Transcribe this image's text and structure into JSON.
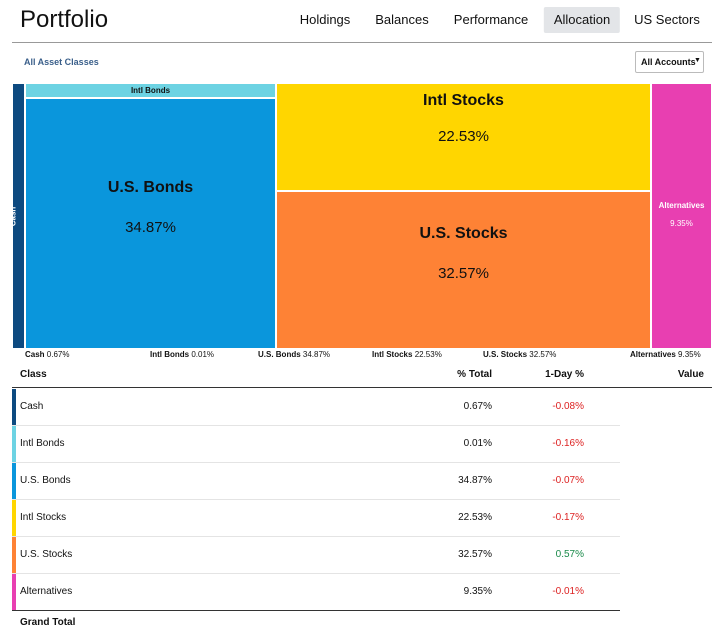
{
  "header": {
    "title": "Portfolio",
    "tabs": [
      "Holdings",
      "Balances",
      "Performance",
      "Allocation",
      "US Sectors"
    ],
    "active_tab": 3
  },
  "filters": {
    "view": "All Asset Classes",
    "accounts": "All Accounts"
  },
  "allocation": [
    {
      "name": "Cash",
      "color": "#0d4a80",
      "value": 0.67,
      "value_label": "0.67%",
      "day_change": "-0.08%"
    },
    {
      "name": "Intl Bonds",
      "color": "#6dd3e3",
      "value": 0.01,
      "value_label": "0.01%",
      "day_change": "-0.16%"
    },
    {
      "name": "U.S. Bonds",
      "color": "#0a96dc",
      "value": 34.87,
      "value_label": "34.87%",
      "day_change": "-0.07%"
    },
    {
      "name": "Intl Stocks",
      "color": "#ffd600",
      "value": 22.53,
      "value_label": "22.53%",
      "day_change": "-0.17%"
    },
    {
      "name": "U.S. Stocks",
      "color": "#fe8235",
      "value": 32.57,
      "value_label": "32.57%",
      "day_change": "0.57%"
    },
    {
      "name": "Alternatives",
      "color": "#e83fb1",
      "value": 9.35,
      "value_label": "9.35%",
      "day_change": "-0.01%"
    }
  ],
  "table": {
    "columns": [
      "Class",
      "% Total",
      "1-Day %",
      "Value"
    ],
    "footer": "Grand Total"
  }
}
